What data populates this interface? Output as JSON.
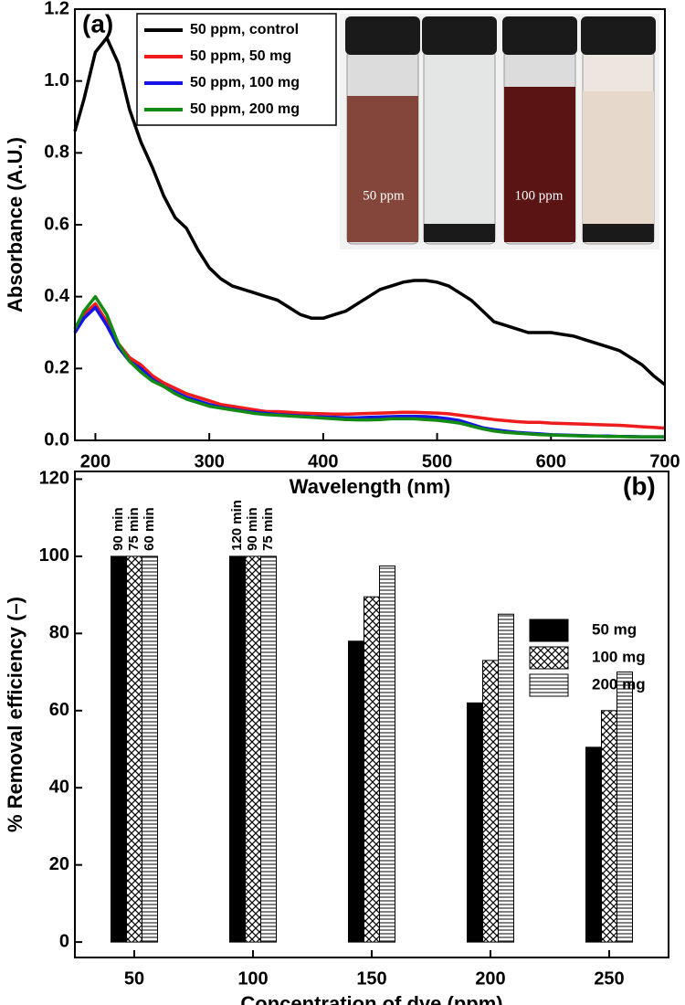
{
  "chart_data": [
    {
      "type": "line",
      "panel_label": "(a)",
      "x_label": "Wavelength (nm)",
      "y_label": "Absorbance (A.U.)",
      "x": [
        182,
        190,
        200,
        210,
        220,
        230,
        240,
        250,
        260,
        270,
        280,
        290,
        300,
        310,
        320,
        330,
        340,
        350,
        360,
        370,
        380,
        390,
        400,
        410,
        420,
        430,
        440,
        450,
        460,
        470,
        480,
        490,
        500,
        510,
        520,
        530,
        540,
        550,
        560,
        570,
        580,
        590,
        600,
        610,
        620,
        630,
        640,
        650,
        660,
        670,
        680,
        690,
        700
      ],
      "series": [
        {
          "name": "50 ppm, control",
          "color": "#000000",
          "values": [
            0.86,
            0.95,
            1.08,
            1.12,
            1.05,
            0.92,
            0.83,
            0.76,
            0.68,
            0.62,
            0.59,
            0.53,
            0.48,
            0.45,
            0.43,
            0.42,
            0.41,
            0.4,
            0.39,
            0.37,
            0.35,
            0.34,
            0.34,
            0.35,
            0.36,
            0.38,
            0.4,
            0.42,
            0.43,
            0.44,
            0.445,
            0.445,
            0.44,
            0.43,
            0.41,
            0.39,
            0.36,
            0.33,
            0.32,
            0.31,
            0.3,
            0.3,
            0.3,
            0.295,
            0.29,
            0.28,
            0.27,
            0.26,
            0.25,
            0.23,
            0.21,
            0.18,
            0.155
          ]
        },
        {
          "name": "50 ppm, 50 mg",
          "color": "#ee1c1c",
          "values": [
            0.3,
            0.35,
            0.38,
            0.33,
            0.27,
            0.23,
            0.21,
            0.18,
            0.16,
            0.145,
            0.13,
            0.12,
            0.11,
            0.1,
            0.095,
            0.09,
            0.085,
            0.08,
            0.08,
            0.078,
            0.076,
            0.075,
            0.074,
            0.073,
            0.073,
            0.074,
            0.075,
            0.076,
            0.077,
            0.078,
            0.078,
            0.077,
            0.076,
            0.074,
            0.07,
            0.066,
            0.062,
            0.058,
            0.055,
            0.052,
            0.05,
            0.05,
            0.048,
            0.047,
            0.046,
            0.045,
            0.044,
            0.043,
            0.042,
            0.04,
            0.038,
            0.036,
            0.034
          ]
        },
        {
          "name": "50 ppm, 100 mg",
          "color": "#1414e6",
          "values": [
            0.3,
            0.34,
            0.37,
            0.32,
            0.26,
            0.22,
            0.2,
            0.17,
            0.15,
            0.135,
            0.12,
            0.11,
            0.1,
            0.092,
            0.087,
            0.082,
            0.078,
            0.075,
            0.072,
            0.07,
            0.068,
            0.066,
            0.065,
            0.064,
            0.063,
            0.063,
            0.064,
            0.065,
            0.066,
            0.067,
            0.067,
            0.066,
            0.064,
            0.06,
            0.055,
            0.045,
            0.035,
            0.03,
            0.026,
            0.022,
            0.02,
            0.018,
            0.016,
            0.015,
            0.014,
            0.013,
            0.012,
            0.012,
            0.011,
            0.011,
            0.01,
            0.01,
            0.01
          ]
        },
        {
          "name": "50 ppm, 200 mg",
          "color": "#138a13",
          "values": [
            0.31,
            0.36,
            0.4,
            0.35,
            0.27,
            0.22,
            0.19,
            0.165,
            0.15,
            0.13,
            0.115,
            0.105,
            0.095,
            0.09,
            0.085,
            0.08,
            0.075,
            0.072,
            0.07,
            0.068,
            0.066,
            0.064,
            0.062,
            0.06,
            0.058,
            0.057,
            0.057,
            0.058,
            0.06,
            0.06,
            0.06,
            0.058,
            0.056,
            0.052,
            0.048,
            0.04,
            0.032,
            0.026,
            0.022,
            0.02,
            0.018,
            0.016,
            0.015,
            0.014,
            0.013,
            0.012,
            0.012,
            0.011,
            0.011,
            0.01,
            0.01,
            0.01,
            0.01
          ]
        }
      ],
      "xlim": [
        182,
        700
      ],
      "ylim": [
        0,
        1.2
      ],
      "xticks": [
        200,
        300,
        400,
        500,
        600,
        700
      ],
      "yticks": [
        {
          "value": 0,
          "label": "0.0"
        },
        0.2,
        0.4,
        0.6,
        0.8,
        {
          "value": 1,
          "label": "1.0"
        },
        1.2
      ],
      "legend": "top-left",
      "annotations": [
        {
          "text": "50 ppm"
        },
        {
          "text": "100 ppm"
        }
      ]
    },
    {
      "type": "bar",
      "panel_label": "(b)",
      "x_label": "Concentration of dye (ppm)",
      "y_label": "% Removal efficiency (–)",
      "categories": [
        "50",
        "100",
        "150",
        "200",
        "250"
      ],
      "series": [
        {
          "name": "50 mg",
          "color": "#000000",
          "pattern": "solid",
          "values": [
            100,
            100,
            78,
            62,
            50.5
          ]
        },
        {
          "name": "100 mg",
          "color": "#000000",
          "pattern": "crosshatch",
          "values": [
            100,
            100,
            89.5,
            73,
            60
          ]
        },
        {
          "name": "200 mg",
          "color": "#000000",
          "pattern": "hlines",
          "values": [
            100,
            100,
            97.5,
            85,
            70
          ]
        }
      ],
      "time_labels": [
        [
          "90 min",
          "75 min",
          "60 min"
        ],
        [
          "120 min",
          "90 min",
          "75 min"
        ],
        null,
        null,
        null
      ],
      "ylim": [
        -4,
        122
      ],
      "yticks": [
        0,
        20,
        40,
        60,
        80,
        100,
        120
      ],
      "legend": "right"
    }
  ]
}
